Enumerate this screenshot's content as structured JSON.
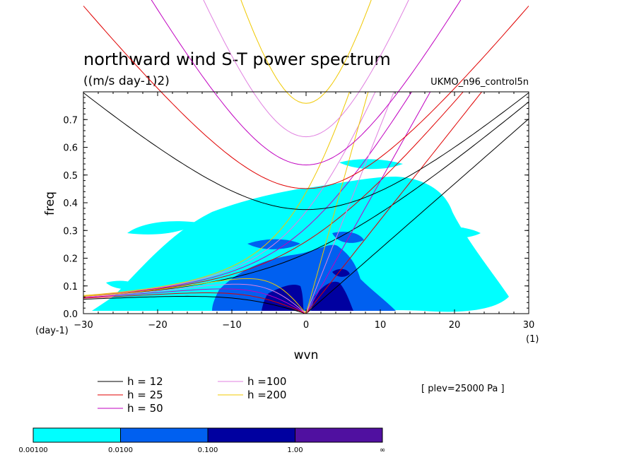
{
  "chart_data": {
    "type": "contour",
    "title": "northward wind S-T power spectrum",
    "units": "((m/s day-1)2)",
    "dataset": "UKMO_n96_control5n",
    "xlabel": "wvn",
    "ylabel": "freq",
    "x_units": "(1)",
    "y_units": "(day-1)",
    "xlim": [
      -30,
      30
    ],
    "ylim": [
      0,
      0.8
    ],
    "xticks": [
      -30,
      -20,
      -10,
      0,
      10,
      20,
      30
    ],
    "yticks": [
      0.0,
      0.1,
      0.2,
      0.3,
      0.4,
      0.5,
      0.6,
      0.7
    ],
    "level_note": "[ plev=25000 Pa ]",
    "dispersion_curves": [
      {
        "label": "h = 12",
        "h": 12,
        "color": "#000000"
      },
      {
        "label": "h = 25",
        "h": 25,
        "color": "#e00000"
      },
      {
        "label": "h = 50",
        "h": 50,
        "color": "#c000c0"
      },
      {
        "label": "h =100",
        "h": 100,
        "color": "#e080e0"
      },
      {
        "label": "h =200",
        "h": 200,
        "color": "#f0c800"
      }
    ],
    "colorbar": {
      "colors": [
        "#00ffff",
        "#0060f0",
        "#0000a0",
        "#5010a0"
      ],
      "labels": [
        "0.00100",
        "0.0100",
        "0.100",
        "1.00",
        "∞"
      ]
    }
  }
}
